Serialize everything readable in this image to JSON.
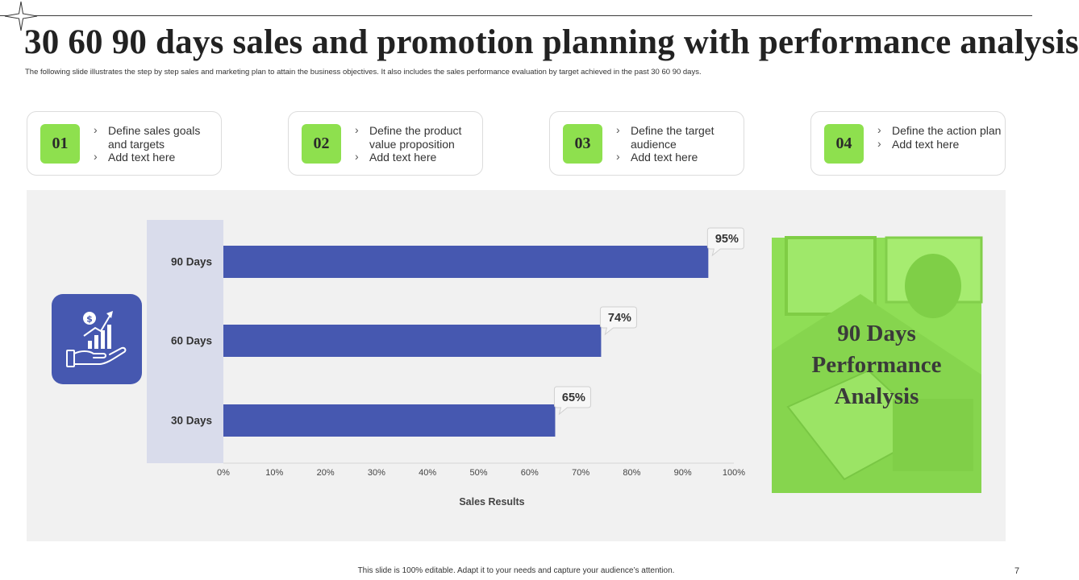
{
  "slide": {
    "title": "30 60 90 days sales and promotion planning with performance analysis",
    "subtitle": "The following slide illustrates the step by step sales and marketing plan  to attain the business objectives. It also includes the sales performance evaluation by target achieved in the past 30  60 90 days.",
    "footer": "This slide is 100% editable.  Adapt it to your needs and capture your audience’s attention.",
    "page_number": "7"
  },
  "steps": [
    {
      "number": "01",
      "line1": "Define sales goals and targets",
      "line2": "Add text here"
    },
    {
      "number": "02",
      "line1": "Define the product value proposition",
      "line2": "Add text here"
    },
    {
      "number": "03",
      "line1": "Define the target audience",
      "line2": "Add text here"
    },
    {
      "number": "04",
      "line1": "Define the action plan",
      "line2": "Add text here"
    }
  ],
  "icons": {
    "decoration": "star-icon",
    "chart_badge": "money-hand-growth-icon"
  },
  "performance_card": {
    "line1": "90 Days",
    "line2": "Performance",
    "line3": "Analysis"
  },
  "colors": {
    "accent_green": "#8ee04e",
    "bar_blue": "#4658b0",
    "category_band": "#d9dceb"
  },
  "chart_data": {
    "type": "bar",
    "orientation": "horizontal",
    "categories": [
      "90 Days",
      "60 Days",
      "30 Days"
    ],
    "values": [
      95,
      74,
      65
    ],
    "data_labels": [
      "95%",
      "74%",
      "65%"
    ],
    "xlabel": "Sales Results",
    "ylabel": "",
    "xlim": [
      0,
      100
    ],
    "x_ticks": [
      "0%",
      "10%",
      "20%",
      "30%",
      "40%",
      "50%",
      "60%",
      "70%",
      "80%",
      "90%",
      "100%"
    ],
    "grid": false,
    "legend": "none"
  }
}
